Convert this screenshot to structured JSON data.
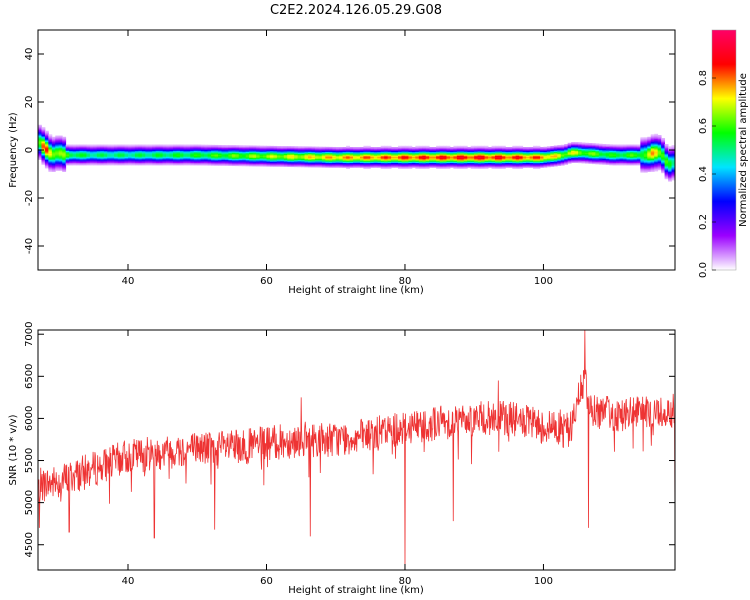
{
  "figure": {
    "title": "C2E2.2024.126.05.29.G08"
  },
  "chart_data": [
    {
      "type": "heatmap",
      "title": "C2E2.2024.126.05.29.G08",
      "xlabel": "Height of straight line (km)",
      "ylabel": "Frequency (Hz)",
      "xlim": [
        27,
        119
      ],
      "ylim": [
        -50,
        50
      ],
      "xticks": [
        40,
        60,
        80,
        100
      ],
      "yticks": [
        -40,
        -20,
        0,
        20,
        40
      ],
      "colorbar": {
        "label": "Normalized spectral amplitude",
        "range": [
          0,
          1
        ],
        "ticks": [
          0.0,
          0.2,
          0.4,
          0.6,
          0.8
        ],
        "colors": [
          "#ffffff",
          "#9b00ff",
          "#0000ff",
          "#00e5ff",
          "#00ff00",
          "#ffff00",
          "#ff0000",
          "#ff0066"
        ]
      },
      "ridge": {
        "x": [
          27,
          28,
          29,
          30,
          31,
          32,
          35,
          40,
          50,
          60,
          70,
          80,
          90,
          95,
          100,
          103,
          104,
          105,
          110,
          115,
          116,
          117,
          118,
          119
        ],
        "frequency": [
          4,
          1,
          -2,
          -1,
          -2,
          -2,
          -2,
          -2,
          -2,
          -2.5,
          -3,
          -3,
          -3,
          -3,
          -3,
          -2,
          -1,
          -1,
          -2,
          -2,
          -1,
          -1,
          -6,
          -5
        ],
        "peak_amplitude": [
          0.6,
          0.9,
          0.75,
          0.7,
          0.65,
          0.6,
          0.55,
          0.55,
          0.6,
          0.7,
          0.8,
          0.88,
          0.92,
          0.9,
          0.85,
          0.7,
          0.75,
          0.7,
          0.6,
          0.65,
          0.85,
          0.7,
          0.6,
          0.5
        ]
      }
    },
    {
      "type": "line",
      "xlabel": "Height of straight line (km)",
      "ylabel": "SNR (10 * v/v)",
      "xlim": [
        27,
        119
      ],
      "ylim": [
        4200,
        7050
      ],
      "xticks": [
        40,
        60,
        80,
        100
      ],
      "yticks": [
        4500,
        5000,
        5500,
        6000,
        6500,
        7000
      ],
      "color": "#ee3333",
      "trend": {
        "x": [
          27,
          30,
          35,
          40,
          45,
          50,
          55,
          60,
          65,
          70,
          75,
          80,
          85,
          90,
          95,
          100,
          104,
          105,
          106,
          107,
          110,
          115,
          119
        ],
        "snr": [
          5200,
          5250,
          5400,
          5550,
          5600,
          5650,
          5650,
          5700,
          5750,
          5750,
          5800,
          5900,
          5950,
          6000,
          6000,
          5900,
          5900,
          6200,
          6500,
          6100,
          6050,
          6050,
          6100
        ]
      },
      "dips": [
        {
          "x": 27.2,
          "snr": 4700
        },
        {
          "x": 31.5,
          "snr": 4650
        },
        {
          "x": 43.8,
          "snr": 4580
        },
        {
          "x": 52.5,
          "snr": 4680
        },
        {
          "x": 66.3,
          "snr": 4600
        },
        {
          "x": 80,
          "snr": 4200
        },
        {
          "x": 87,
          "snr": 4780
        },
        {
          "x": 106.5,
          "snr": 4700
        },
        {
          "x": 119,
          "snr": 4800
        }
      ],
      "peaks": [
        {
          "x": 106,
          "snr": 7050
        },
        {
          "x": 65,
          "snr": 6250
        },
        {
          "x": 93.5,
          "snr": 6450
        }
      ]
    }
  ]
}
